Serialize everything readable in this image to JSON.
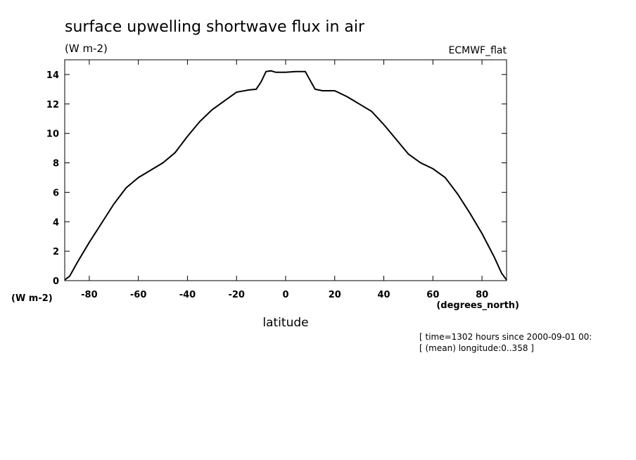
{
  "chart_data": {
    "type": "line",
    "title": "surface upwelling shortwave flux in air",
    "subtitle": "(W m-2)",
    "dataset": "ECMWF_flat",
    "ylabel": "(W m-2)",
    "xunits": "(degrees_north)",
    "xlabel": "latitude",
    "annotations": [
      "[ time=1302 hours since 2000-09-01 00:",
      "[ (mean) longitude:0..358 ]"
    ],
    "x": [
      -90,
      -88,
      -85,
      -80,
      -75,
      -70,
      -65,
      -60,
      -55,
      -50,
      -45,
      -40,
      -35,
      -30,
      -25,
      -20,
      -15,
      -12,
      -10,
      -8,
      -6,
      -4,
      0,
      4,
      8,
      10,
      12,
      15,
      20,
      25,
      30,
      35,
      40,
      45,
      50,
      55,
      60,
      65,
      70,
      75,
      80,
      85,
      88,
      90
    ],
    "series": [
      {
        "color": "#000000",
        "values": [
          0.05,
          0.3,
          1.2,
          2.6,
          3.9,
          5.2,
          6.3,
          7.0,
          7.5,
          8.0,
          8.7,
          9.8,
          10.8,
          11.6,
          12.2,
          12.8,
          12.95,
          13.0,
          13.5,
          14.2,
          14.25,
          14.15,
          14.15,
          14.2,
          14.2,
          13.6,
          13.0,
          12.9,
          12.9,
          12.5,
          12.0,
          11.5,
          10.6,
          9.6,
          8.6,
          8.0,
          7.6,
          7.0,
          5.9,
          4.6,
          3.2,
          1.6,
          0.5,
          0.05
        ]
      }
    ],
    "xlim": [
      -90,
      90
    ],
    "ylim": [
      0,
      15
    ],
    "xticks": [
      -80,
      -60,
      -40,
      -20,
      0,
      20,
      40,
      60,
      80
    ],
    "yticks": [
      0,
      2,
      4,
      6,
      8,
      10,
      12,
      14
    ]
  }
}
